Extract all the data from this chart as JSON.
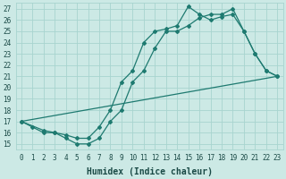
{
  "xlabel": "Humidex (Indice chaleur)",
  "xlim": [
    -0.5,
    23.5
  ],
  "ylim": [
    14.5,
    27.5
  ],
  "xticks": [
    0,
    1,
    2,
    3,
    4,
    5,
    6,
    7,
    8,
    9,
    10,
    11,
    12,
    13,
    14,
    15,
    16,
    17,
    18,
    19,
    20,
    21,
    22,
    23
  ],
  "yticks": [
    15,
    16,
    17,
    18,
    19,
    20,
    21,
    22,
    23,
    24,
    25,
    26,
    27
  ],
  "background_color": "#cce9e5",
  "grid_color": "#a8d4cf",
  "line_color": "#1e7a70",
  "line1_x": [
    0,
    1,
    2,
    3,
    4,
    5,
    6,
    7,
    8,
    9,
    10,
    11,
    12,
    13,
    14,
    15,
    16,
    17,
    18,
    19,
    20,
    21,
    22,
    23
  ],
  "line1_y": [
    17.0,
    16.5,
    16.0,
    16.0,
    15.5,
    15.0,
    15.0,
    15.5,
    17.0,
    18.0,
    20.5,
    21.5,
    23.5,
    25.0,
    25.0,
    25.5,
    26.2,
    26.5,
    26.5,
    27.0,
    25.0,
    23.0,
    21.5,
    21.0
  ],
  "line2_x": [
    0,
    2,
    3,
    4,
    5,
    6,
    7,
    8,
    9,
    10,
    11,
    12,
    13,
    14,
    15,
    16,
    17,
    18,
    19,
    20,
    21,
    22,
    23
  ],
  "line2_y": [
    17.0,
    16.2,
    16.0,
    15.8,
    15.5,
    15.5,
    16.5,
    18.0,
    20.5,
    21.5,
    24.0,
    25.0,
    25.2,
    25.5,
    27.2,
    26.5,
    26.0,
    26.3,
    26.5,
    25.0,
    23.0,
    21.5,
    21.0
  ],
  "line3_x": [
    0,
    23
  ],
  "line3_y": [
    17.0,
    21.0
  ],
  "marker": "D",
  "marker_size": 2.0,
  "line_width": 0.9,
  "font_color": "#1a4a46",
  "tick_fontsize": 5.5,
  "xlabel_fontsize": 7.0
}
